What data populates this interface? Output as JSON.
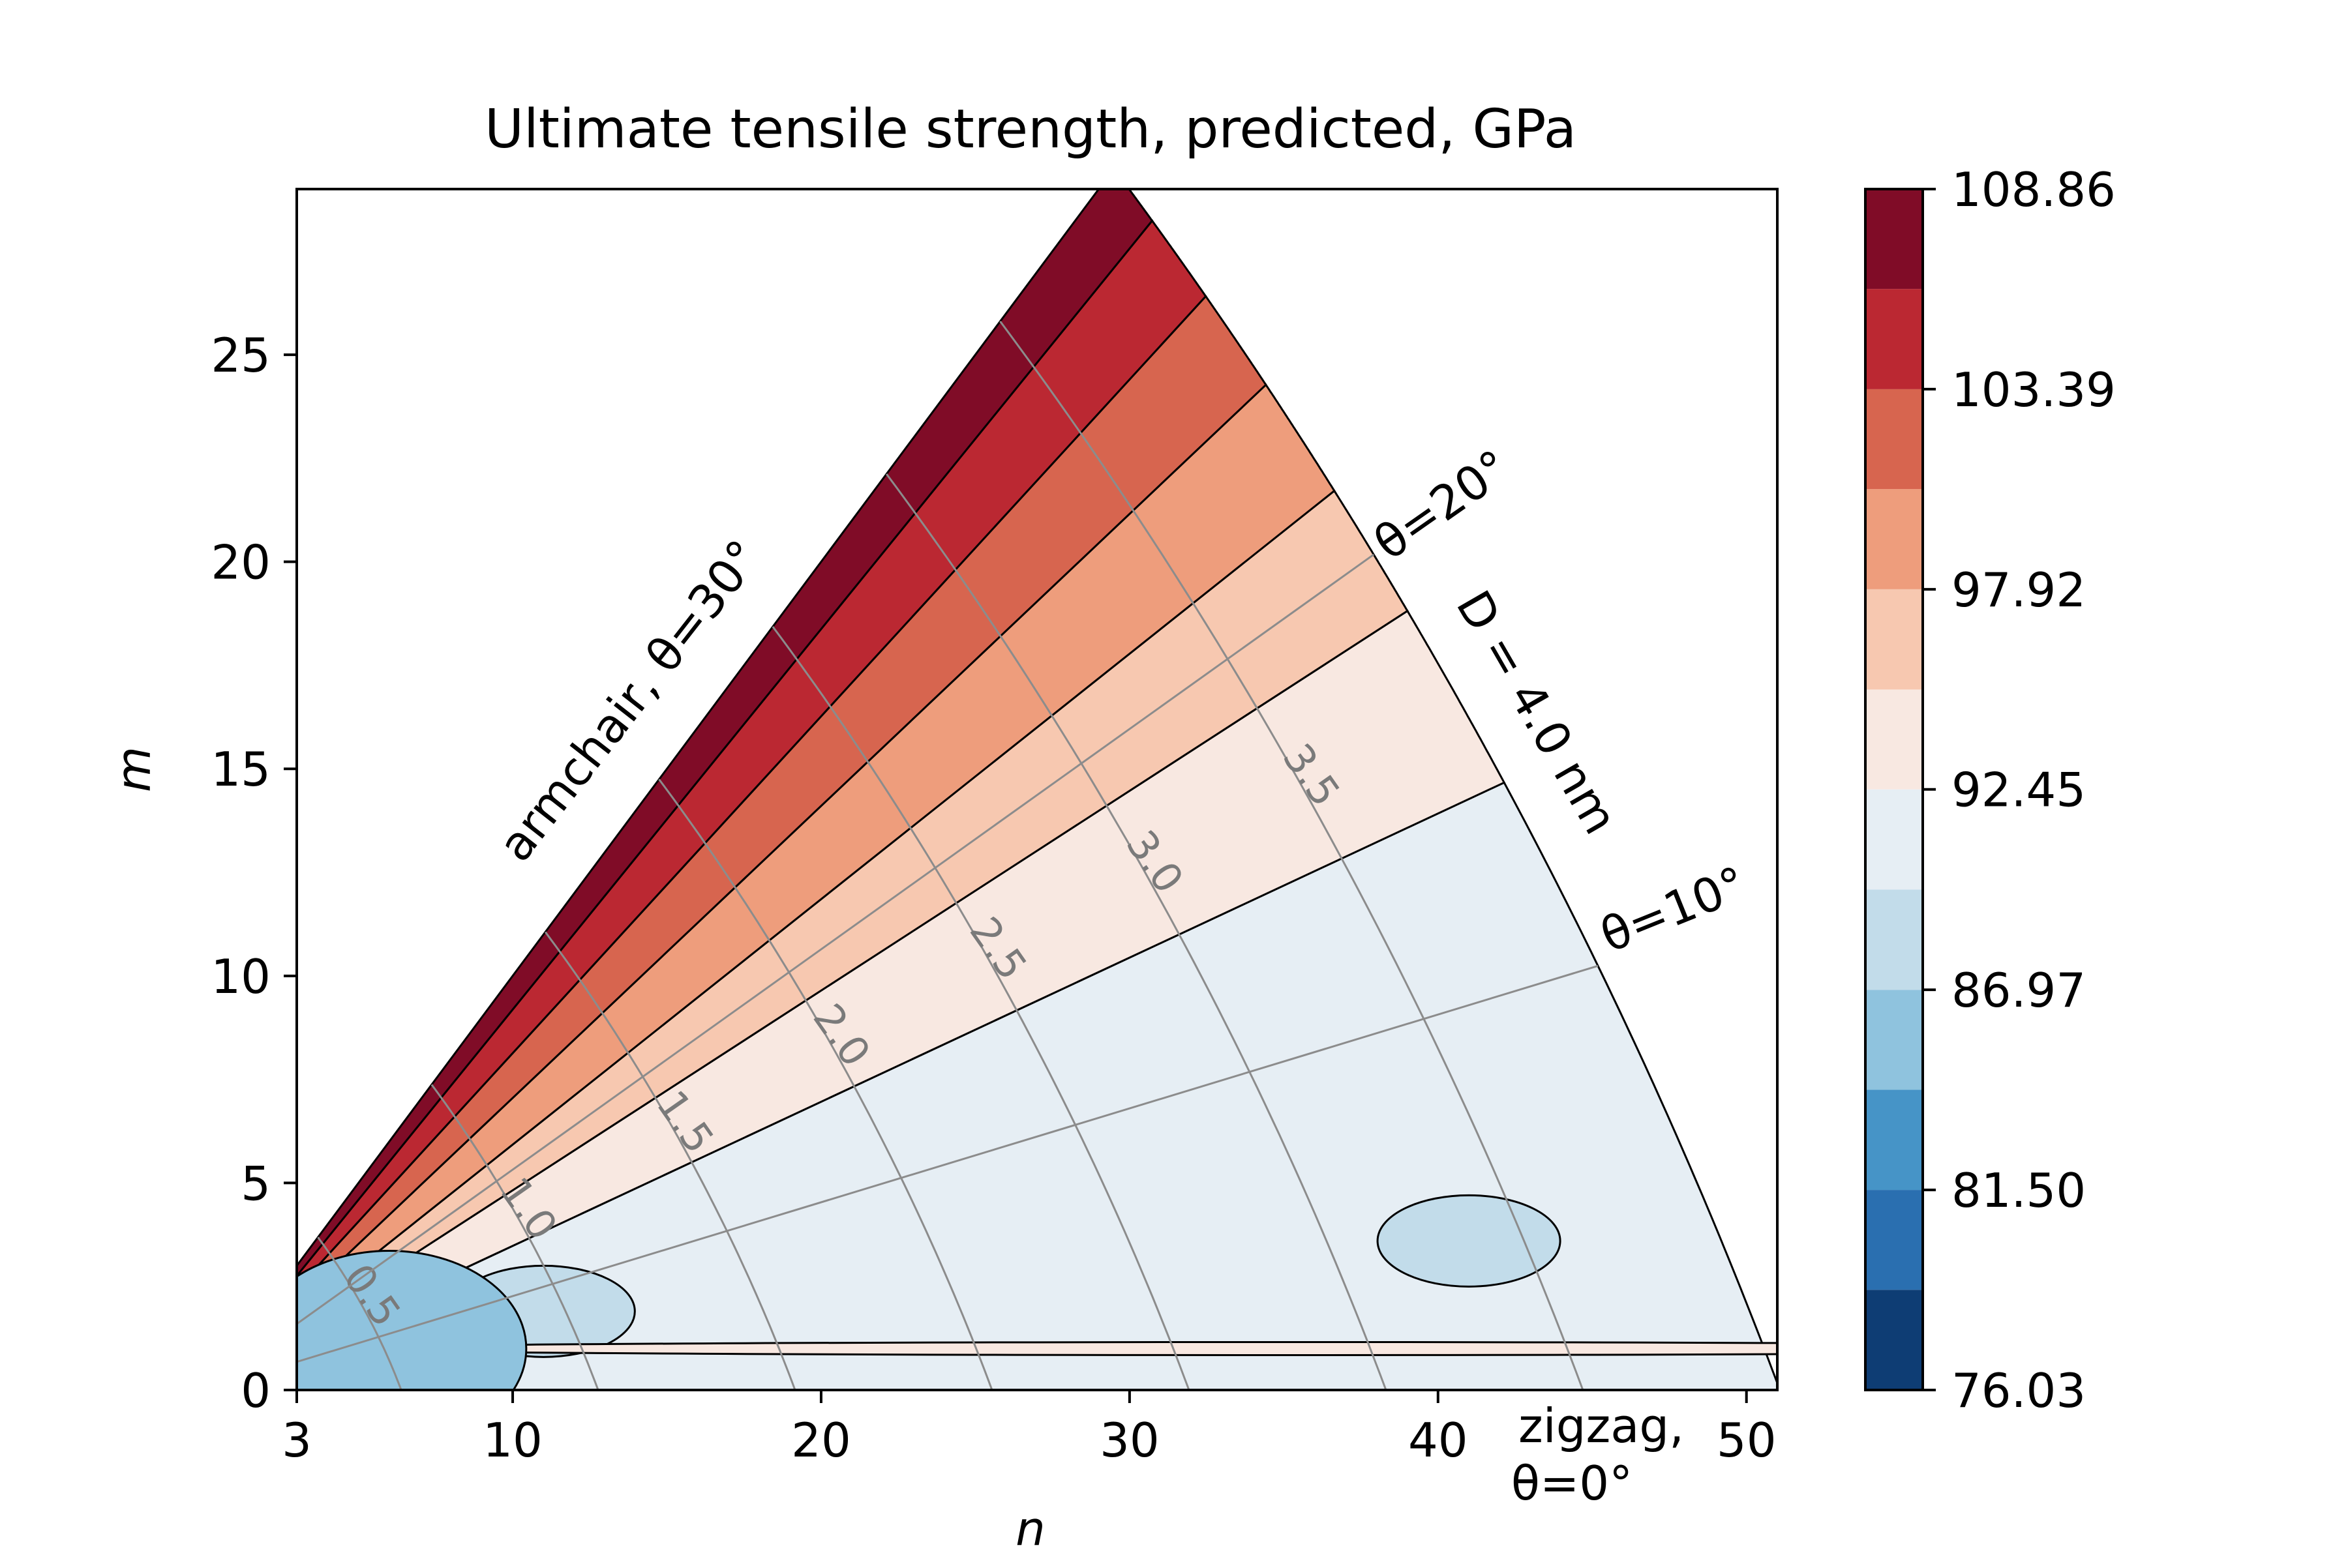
{
  "chart_data": {
    "type": "heatmap",
    "subtype": "filled-contour",
    "title": "Ultimate tensile strength, predicted, GPa",
    "xlabel": "n",
    "ylabel": "m",
    "xlim": [
      3,
      51
    ],
    "ylim": [
      0,
      29
    ],
    "x_ticks": [
      3,
      10,
      20,
      30,
      40,
      50
    ],
    "y_ticks": [
      0,
      5,
      10,
      15,
      20,
      25
    ],
    "grid": false,
    "colorbar": {
      "min": 76.03,
      "max": 108.86,
      "levels": [
        76.03,
        78.77,
        81.5,
        84.24,
        86.97,
        89.71,
        92.45,
        95.18,
        97.92,
        100.66,
        103.39,
        106.13,
        108.86
      ],
      "tick_labels": [
        "76.03",
        "81.50",
        "86.97",
        "92.45",
        "97.92",
        "103.39",
        "108.86"
      ],
      "colors": [
        "#0e3d74",
        "#2a6fb0",
        "#4694c7",
        "#8fc3de",
        "#c2dcea",
        "#e6eef4",
        "#f8e8e1",
        "#f7c8b0",
        "#ee9d7c",
        "#d7654f",
        "#bb2832",
        "#800c27"
      ]
    },
    "bands": [
      {
        "from": 106.13,
        "to": 108.86,
        "max_angle_deg": 30,
        "min_angle_deg": 28.6
      },
      {
        "from": 103.39,
        "to": 106.13,
        "max_angle_deg": 28.6,
        "min_angle_deg": 26.6
      },
      {
        "from": 100.66,
        "to": 103.39,
        "max_angle_deg": 26.6,
        "min_angle_deg": 24.3
      },
      {
        "from": 97.92,
        "to": 100.66,
        "max_angle_deg": 24.3,
        "min_angle_deg": 21.6
      },
      {
        "from": 95.18,
        "to": 97.92,
        "max_angle_deg": 21.6,
        "min_angle_deg": 18.6
      },
      {
        "from": 92.45,
        "to": 95.18,
        "max_angle_deg": 18.6,
        "min_angle_deg": 14.4
      },
      {
        "from": 89.71,
        "to": 92.45,
        "max_angle_deg": 14.4,
        "min_angle_deg": 0
      }
    ],
    "islands": [
      {
        "band": [
          86.97,
          89.71
        ],
        "n": 41,
        "m": 3.6,
        "note": "island near n=41"
      },
      {
        "band": [
          86.97,
          89.71
        ],
        "n": 11,
        "m": 1.9,
        "note": "island near n=11"
      },
      {
        "band": [
          92.45,
          95.18
        ],
        "n": 35,
        "m": 1.0,
        "note": "thin strip along zigzag edge"
      },
      {
        "band": [
          84.24,
          89.71
        ],
        "n": 6,
        "m": 1.0,
        "note": "low region near origin"
      }
    ],
    "diameter_contours_nm": [
      0.5,
      1.0,
      1.5,
      2.0,
      2.5,
      3.0,
      3.5,
      4.0
    ],
    "diameter_labels": [
      "0.5",
      "1.0",
      "1.5",
      "2.0",
      "2.5",
      "3.0",
      "3.5"
    ],
    "angle_lines_deg": [
      10,
      20
    ],
    "annotations": {
      "armchair": "armchair, θ=30°",
      "theta20": "θ=20°",
      "theta10": "θ=10°",
      "diameter": "D = 4.0 nm",
      "zigzag_line1": "zigzag,",
      "zigzag_line2": "θ=0°"
    }
  },
  "colors": {
    "axis": "#000000",
    "guide_lines": "#8c8c8c",
    "guide_labels": "#7a7a7a"
  }
}
